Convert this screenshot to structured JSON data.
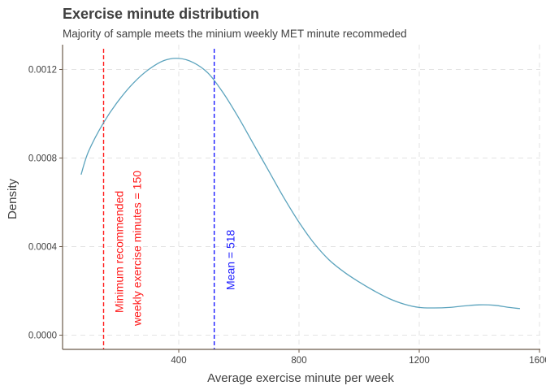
{
  "chart_data": {
    "type": "line",
    "title": "Exercise minute distribution",
    "subtitle": "Majority of sample meets the minium weekly MET minute recommeded",
    "xlabel": "Average exercise minute per week",
    "ylabel": "Density",
    "xlim": [
      0,
      1600
    ],
    "ylim": [
      0,
      0.0012
    ],
    "x_ticks": [
      400,
      800,
      1200,
      1600
    ],
    "y_ticks": [
      0,
      0.0004,
      0.0008,
      0.0012
    ],
    "x_tick_labels": [
      "400",
      "800",
      "1200",
      "1600"
    ],
    "y_tick_labels": [
      "0.0000",
      "0.0004",
      "0.0008",
      "0.0012"
    ],
    "grid": true,
    "series": [
      {
        "color": "#5ba3bd",
        "x": [
          75,
          100,
          150,
          200,
          250,
          300,
          350,
          400,
          450,
          500,
          550,
          600,
          650,
          700,
          750,
          800,
          850,
          900,
          950,
          1000,
          1050,
          1100,
          1150,
          1200,
          1250,
          1300,
          1350,
          1400,
          1450,
          1500,
          1535
        ],
        "y": [
          0.000725,
          0.00083,
          0.00096,
          0.00106,
          0.00114,
          0.0012,
          0.00124,
          0.00125,
          0.00123,
          0.00118,
          0.00109,
          0.00098,
          0.00086,
          0.00074,
          0.00062,
          0.00051,
          0.000415,
          0.00034,
          0.000285,
          0.00024,
          0.0002,
          0.000165,
          0.00014,
          0.000125,
          0.000123,
          0.000125,
          0.000132,
          0.000137,
          0.000135,
          0.000125,
          0.00012
        ]
      }
    ],
    "reference_lines": [
      {
        "x": 150,
        "color": "#ff1a1a",
        "label_lines": [
          "Minimum recommended",
          "weekly exercise minutes = 150"
        ]
      },
      {
        "x": 518,
        "color": "#1a1aff",
        "label_lines": [
          "Mean = 518"
        ]
      }
    ]
  }
}
